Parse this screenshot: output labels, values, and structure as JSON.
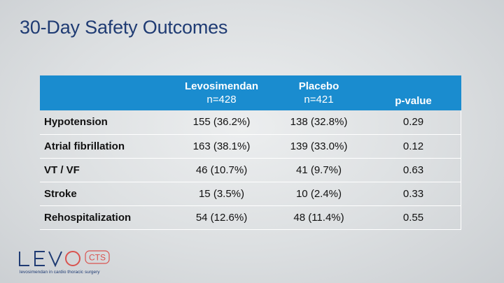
{
  "slide": {
    "title": "30-Day Safety Outcomes"
  },
  "table": {
    "headers": [
      {
        "name": "",
        "sub": ""
      },
      {
        "name": "Levosimendan",
        "sub": "n=428"
      },
      {
        "name": "Placebo",
        "sub": "n=421"
      },
      {
        "name": "p-value",
        "sub": ""
      }
    ],
    "rows": [
      {
        "label": "Hypotension",
        "levo": "155 (36.2%)",
        "placebo": "138 (32.8%)",
        "p": "0.29"
      },
      {
        "label": "Atrial fibrillation",
        "levo": "163 (38.1%)",
        "placebo": "139 (33.0%)",
        "p": "0.12"
      },
      {
        "label": "VT / VF",
        "levo": "46 (10.7%)",
        "placebo": "41 (9.7%)",
        "p": "0.63"
      },
      {
        "label": "Stroke",
        "levo": "15 (3.5%)",
        "placebo": "10 (2.4%)",
        "p": "0.33"
      },
      {
        "label": "Rehospitalization",
        "levo": "54 (12.6%)",
        "placebo": "48 (11.4%)",
        "p": "0.55"
      }
    ]
  },
  "logo": {
    "word": "LEVO",
    "badge": "CTS",
    "tagline": "levosimendan in cardio thoracic surgery",
    "word_color": "#1f3b73",
    "accent_color": "#d9534f"
  }
}
